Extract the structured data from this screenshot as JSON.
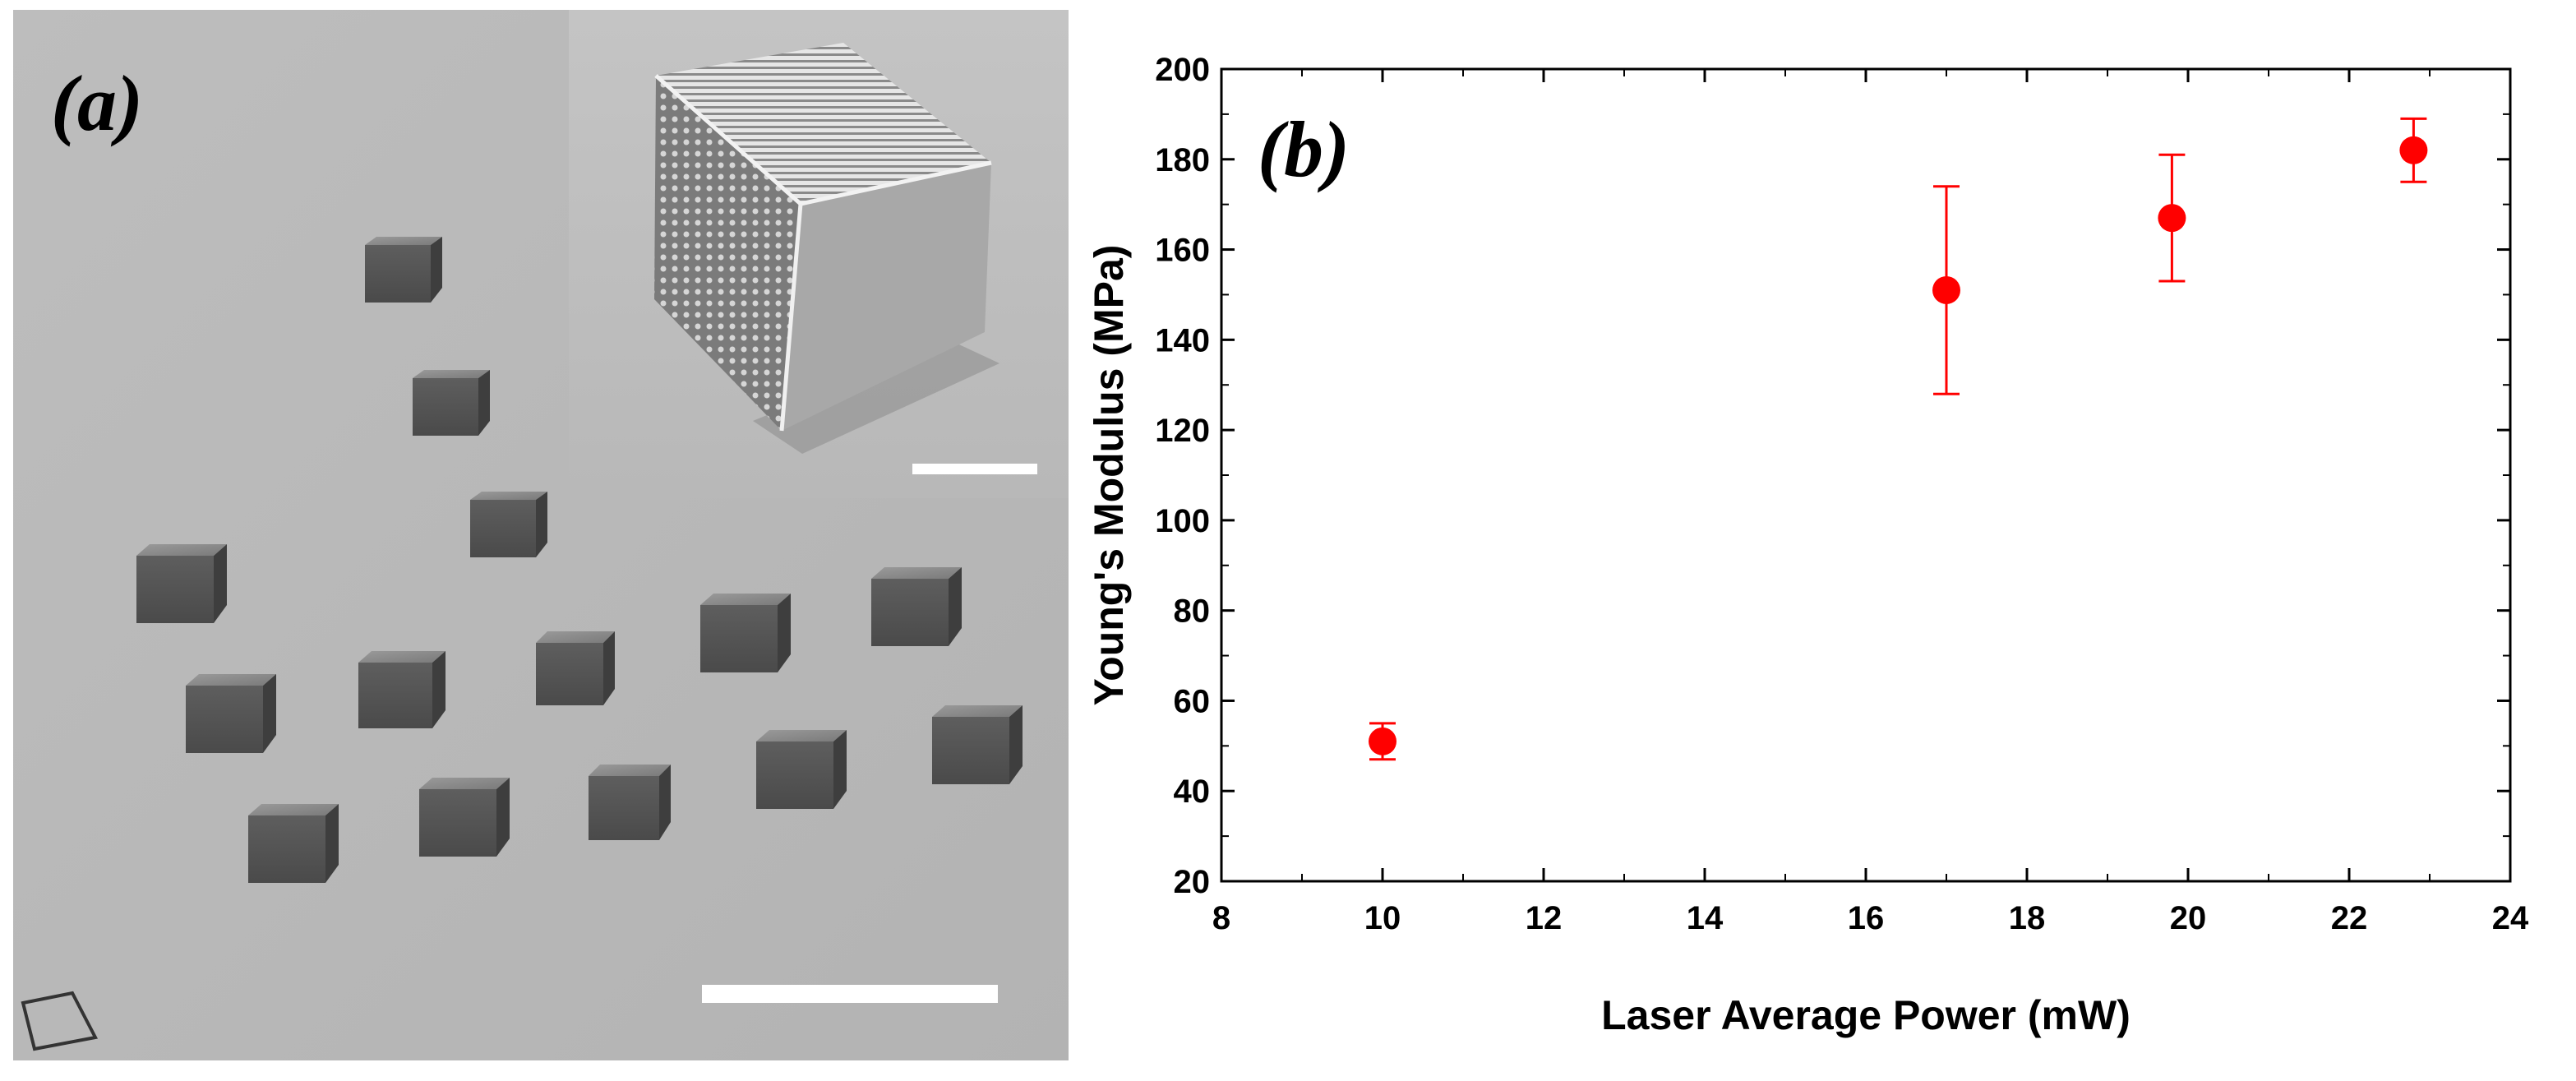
{
  "panel_a": {
    "label": "(a)"
  },
  "chart_data": {
    "type": "scatter",
    "panel_label": "(b)",
    "xlabel": "Laser Average Power (mW)",
    "ylabel": "Young's Modulus (MPa)",
    "xlim": [
      8,
      24
    ],
    "ylim": [
      20,
      200
    ],
    "xticks": [
      8,
      10,
      12,
      14,
      16,
      18,
      20,
      22,
      24
    ],
    "yticks": [
      20,
      40,
      60,
      80,
      100,
      120,
      140,
      160,
      180,
      200
    ],
    "grid": false,
    "marker_color": "#ff0000",
    "points": [
      {
        "x": 10.0,
        "y": 51,
        "err_low": 47,
        "err_high": 55
      },
      {
        "x": 17.0,
        "y": 151,
        "err_low": 128,
        "err_high": 174
      },
      {
        "x": 19.8,
        "y": 167,
        "err_low": 153,
        "err_high": 181
      },
      {
        "x": 22.8,
        "y": 182,
        "err_low": 175,
        "err_high": 189
      }
    ]
  }
}
